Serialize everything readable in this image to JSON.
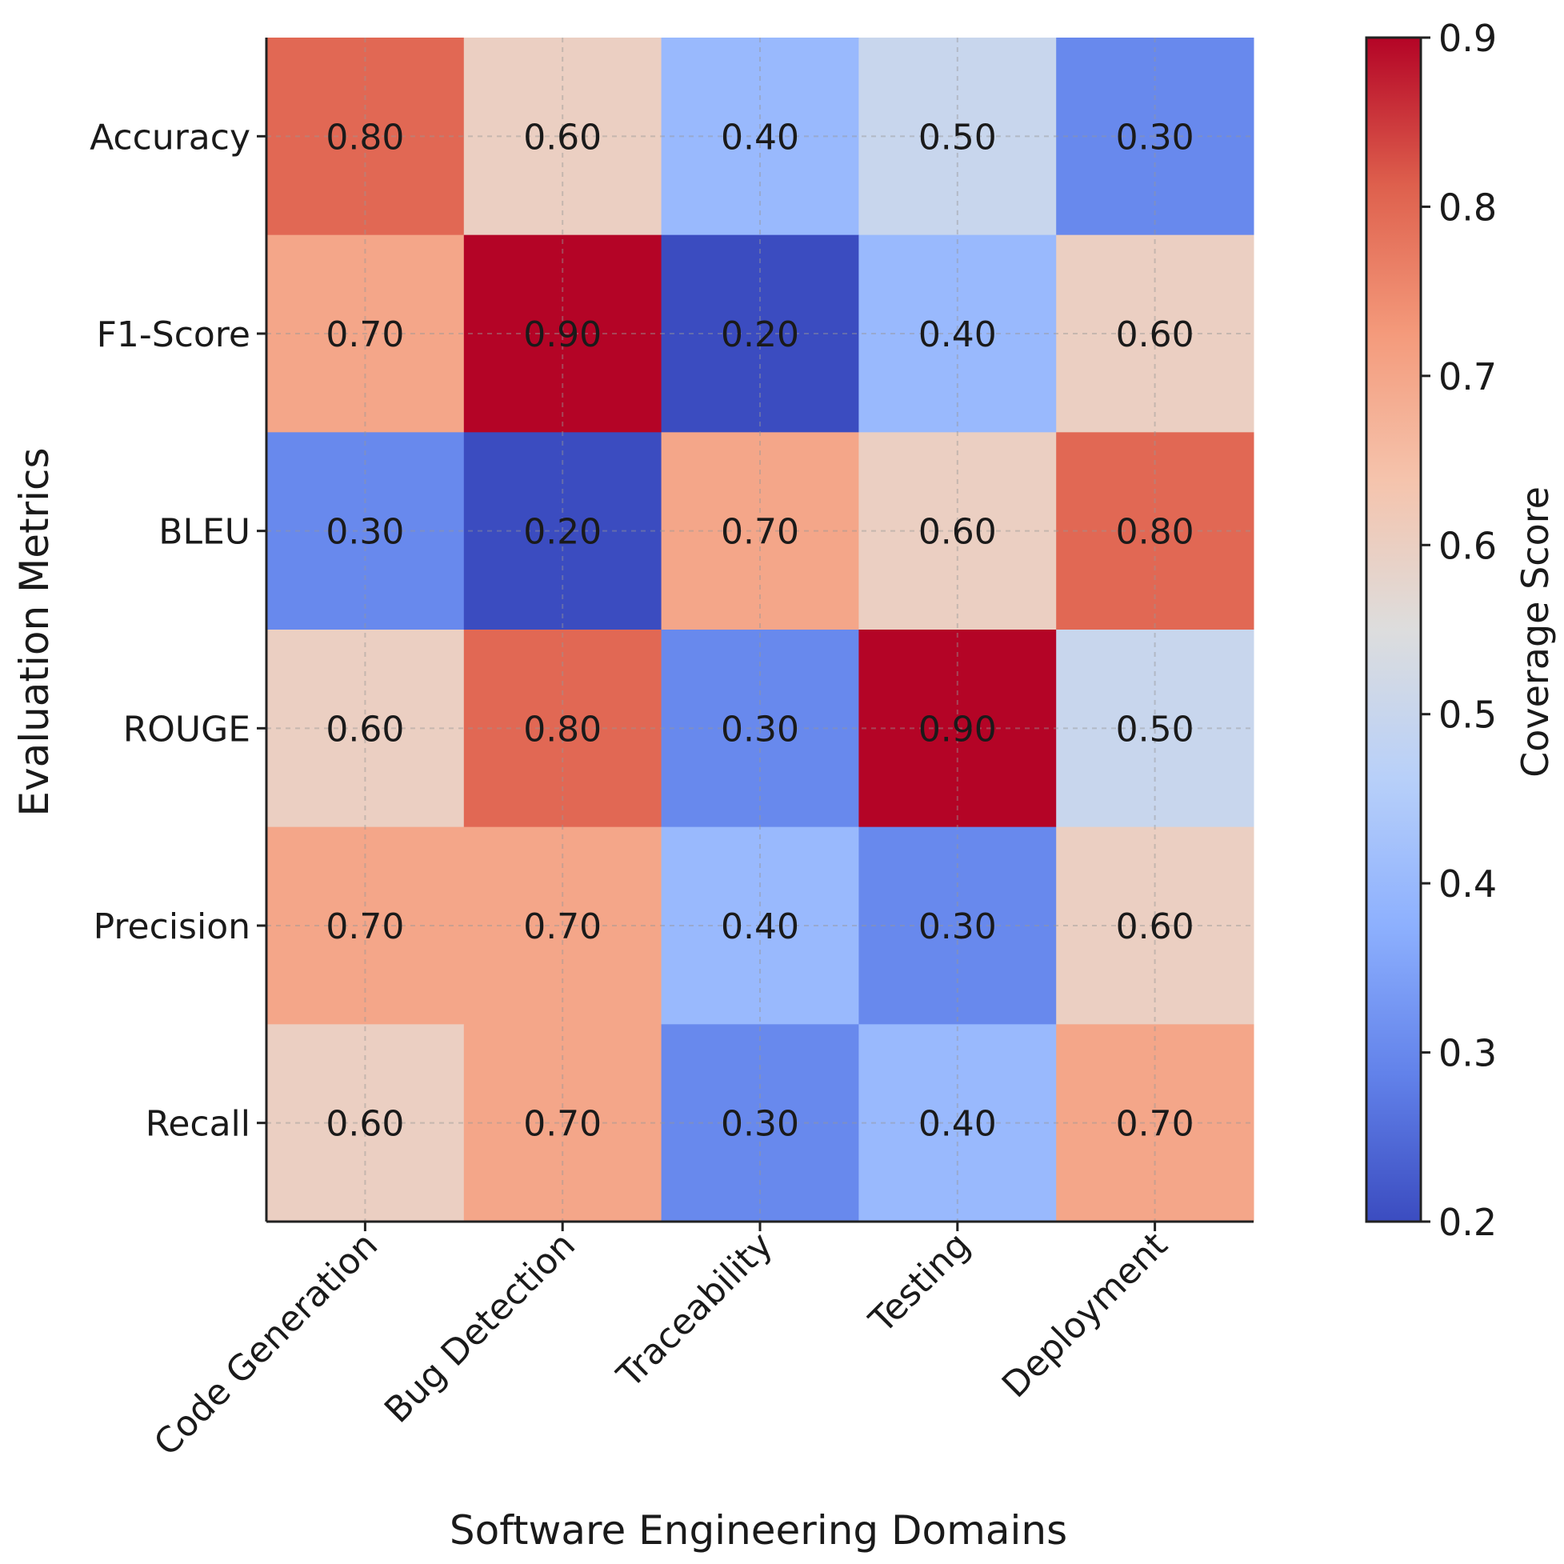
{
  "chart_data": {
    "type": "heatmap",
    "x_categories": [
      "Code Generation",
      "Bug Detection",
      "Traceability",
      "Testing",
      "Deployment"
    ],
    "y_categories": [
      "Accuracy",
      "F1-Score",
      "BLEU",
      "ROUGE",
      "Precision",
      "Recall"
    ],
    "values": [
      [
        0.8,
        0.6,
        0.4,
        0.5,
        0.3
      ],
      [
        0.7,
        0.9,
        0.2,
        0.4,
        0.6
      ],
      [
        0.3,
        0.2,
        0.7,
        0.6,
        0.8
      ],
      [
        0.6,
        0.8,
        0.3,
        0.9,
        0.5
      ],
      [
        0.7,
        0.7,
        0.4,
        0.3,
        0.6
      ],
      [
        0.6,
        0.7,
        0.3,
        0.4,
        0.7
      ]
    ],
    "cell_labels": [
      [
        "0.80",
        "0.60",
        "0.40",
        "0.50",
        "0.30"
      ],
      [
        "0.70",
        "0.90",
        "0.20",
        "0.40",
        "0.60"
      ],
      [
        "0.30",
        "0.20",
        "0.70",
        "0.60",
        "0.80"
      ],
      [
        "0.60",
        "0.80",
        "0.30",
        "0.90",
        "0.50"
      ],
      [
        "0.70",
        "0.70",
        "0.40",
        "0.30",
        "0.60"
      ],
      [
        "0.60",
        "0.70",
        "0.30",
        "0.40",
        "0.70"
      ]
    ],
    "xlabel": "Software Engineering Domains",
    "ylabel": "Evaluation Metrics",
    "colormap": "coolwarm",
    "vmin": 0.2,
    "vmax": 0.9,
    "colorbar": {
      "label": "Coverage Score",
      "ticks": [
        0.2,
        0.3,
        0.4,
        0.5,
        0.6,
        0.7,
        0.8,
        0.9
      ],
      "tick_labels": [
        "0.2",
        "0.3",
        "0.4",
        "0.5",
        "0.6",
        "0.7",
        "0.8",
        "0.9"
      ]
    },
    "grid": true
  }
}
